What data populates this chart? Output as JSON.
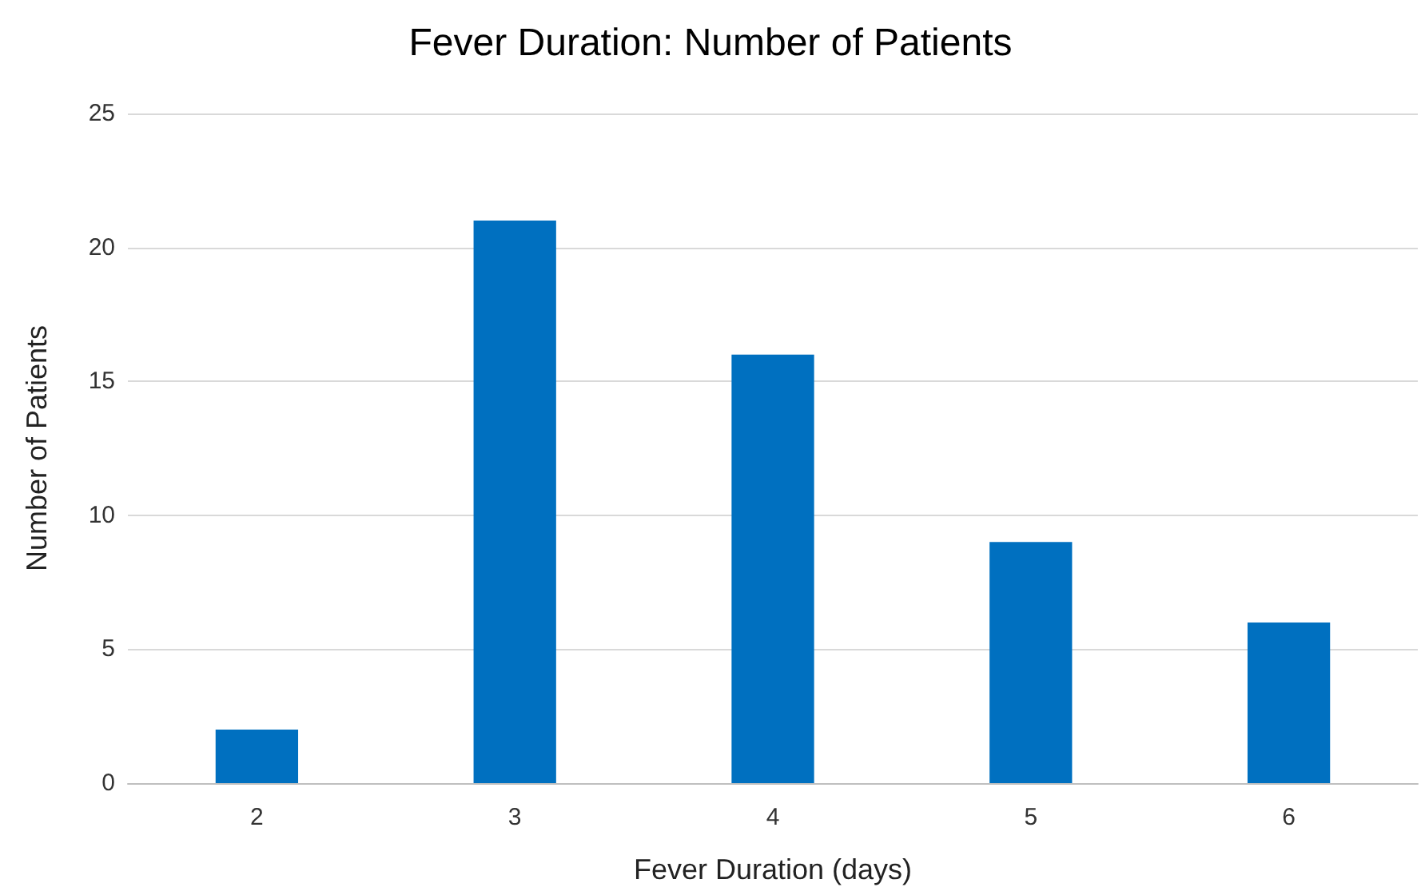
{
  "chart_data": {
    "type": "bar",
    "title": "Fever Duration: Number of Patients",
    "xlabel": "Fever Duration (days)",
    "ylabel": "Number of Patients",
    "categories": [
      "2",
      "3",
      "4",
      "5",
      "6"
    ],
    "values": [
      2,
      21,
      16,
      9,
      6
    ],
    "color": "#0070c0",
    "ylim": [
      0,
      25
    ],
    "yticks": [
      0,
      5,
      10,
      15,
      20,
      25
    ],
    "grid": "y"
  }
}
